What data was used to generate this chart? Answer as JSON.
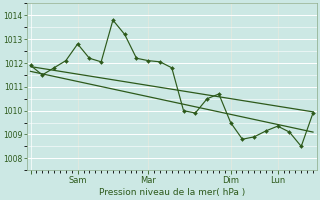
{
  "bg_color": "#cce8e4",
  "grid_color": "#ffffff",
  "line_color": "#2d5a1b",
  "title": "Pression niveau de la mer( hPa )",
  "ylim": [
    1007.5,
    1014.5
  ],
  "yticks": [
    1008,
    1009,
    1010,
    1011,
    1012,
    1013,
    1014
  ],
  "xtick_positions": [
    0,
    4,
    10,
    17,
    21
  ],
  "xtick_labels": [
    "",
    "Sam",
    "Mar",
    "Dim",
    "Lun"
  ],
  "xmax": 24,
  "main_x": [
    0,
    1,
    2,
    3,
    4,
    5,
    6,
    7,
    8,
    9,
    10,
    11,
    12,
    13,
    14,
    15,
    16,
    17,
    18,
    19,
    20,
    21,
    22,
    23,
    24
  ],
  "main_y": [
    1011.9,
    1011.5,
    1011.8,
    1012.1,
    1012.8,
    1012.2,
    1012.05,
    1013.8,
    1013.2,
    1012.2,
    1012.1,
    1012.05,
    1011.8,
    1010.0,
    1009.9,
    1010.5,
    1010.7,
    1009.5,
    1008.8,
    1008.9,
    1009.15,
    1009.35,
    1009.1,
    1008.5,
    1009.9
  ],
  "trend1_x": [
    0,
    24
  ],
  "trend1_y": [
    1011.85,
    1009.95
  ],
  "trend2_x": [
    0,
    24
  ],
  "trend2_y": [
    1011.65,
    1009.1
  ],
  "vline_positions": [
    4,
    10,
    17,
    21
  ],
  "vline_color": "#8aaa88"
}
